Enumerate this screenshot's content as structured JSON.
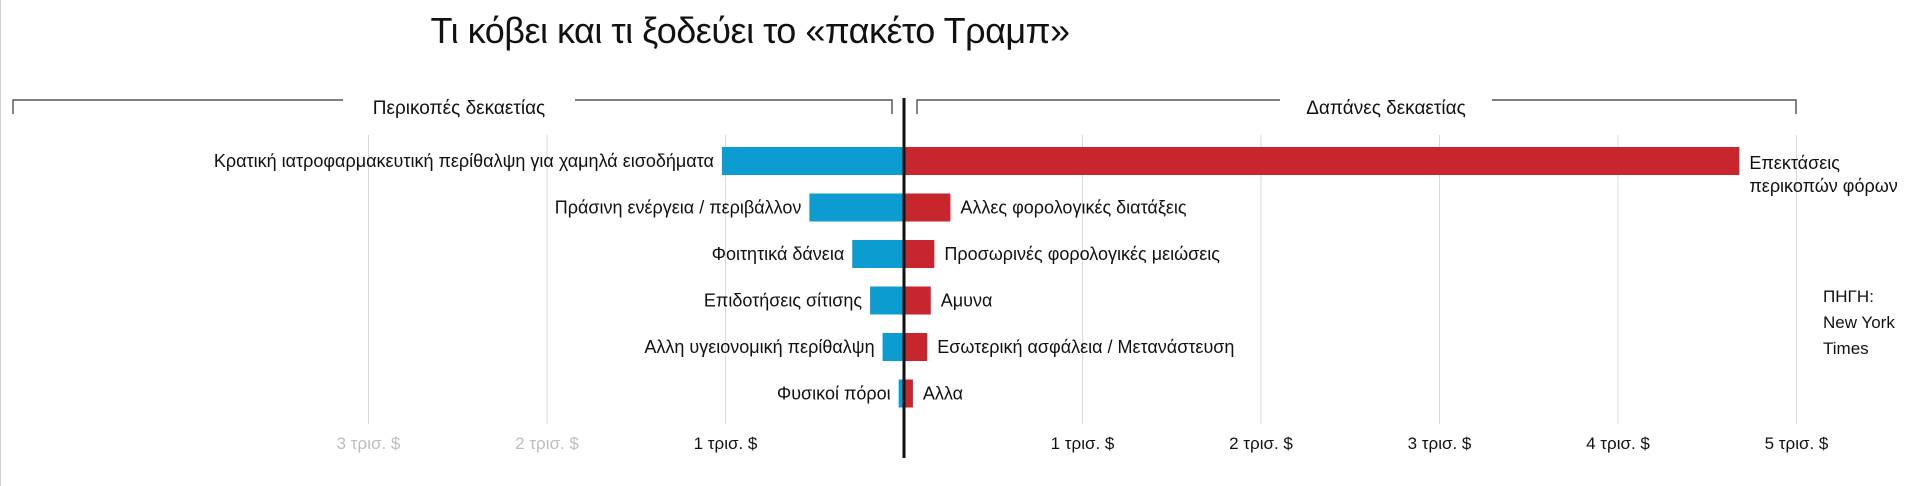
{
  "title": "Τι κόβει και τι ξοδεύει το «πακέτο Τραμπ»",
  "source_label": "ΠΗΓΗ:",
  "source_name": "New York Times",
  "colors": {
    "cuts": "#0d9ccf",
    "spending": "#c8262f",
    "grid": "#d9d9d9",
    "axis": "#111111",
    "faded_tick": "#bdbdbd",
    "text": "#111111"
  },
  "chart_data": {
    "type": "bar",
    "orientation": "horizontal-diverging",
    "xlabel": "",
    "ylabel": "",
    "xlim": [
      -3,
      5
    ],
    "grid": true,
    "tick_values": [
      -3,
      -2,
      -1,
      1,
      2,
      3,
      4,
      5
    ],
    "tick_labels": [
      "3 τρισ. $",
      "2 τρισ. $",
      "1 τρισ. $",
      "1 τρισ. $",
      "2 τρισ. $",
      "3 τρισ. $",
      "4 τρισ. $",
      "5 τρισ. $"
    ],
    "faded_ticks": [
      -3,
      -2
    ],
    "groups": [
      {
        "name": "Περικοπές δεκαετίας",
        "side": "left",
        "range": [
          -5,
          0
        ],
        "categories": [
          "Κρατική ιατροφαρμακευτική περίθαλψη για χαμηλά εισοδήματα",
          "Πράσινη ενέργεια / περιβάλλον",
          "Φοιτητικά δάνεια",
          "Επιδοτήσεις σίτισης",
          "Αλλη υγειονομική περίθαλψη",
          "Φυσικοί πόροι"
        ],
        "values": [
          1.02,
          0.53,
          0.29,
          0.19,
          0.12,
          0.03
        ]
      },
      {
        "name": "Δαπάνες δεκαετίας",
        "side": "right",
        "range": [
          0,
          5
        ],
        "categories": [
          "Επεκτάσεις περικοπών φόρων",
          "Αλλες φορολογικές διατάξεις",
          "Προσωρινές φορολογικές μειώσεις",
          "Αμυνα",
          "Εσωτερική ασφάλεια / Μετανάστευση",
          "Αλλα"
        ],
        "values": [
          4.68,
          0.26,
          0.17,
          0.15,
          0.13,
          0.05
        ]
      }
    ]
  }
}
